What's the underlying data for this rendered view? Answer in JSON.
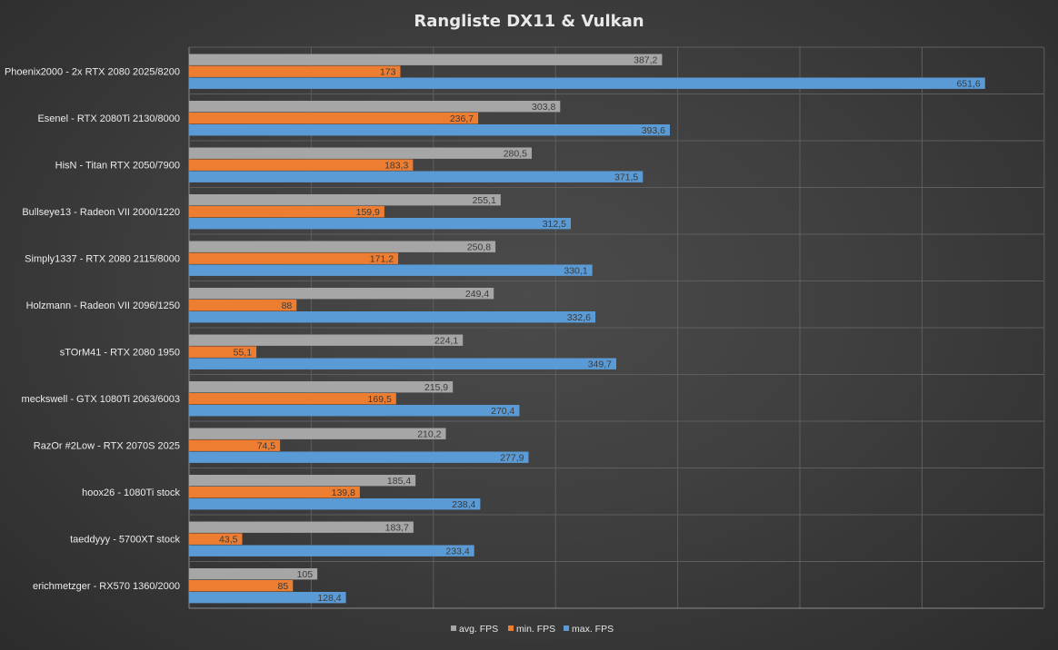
{
  "colors": {
    "avg": "#a6a6a6",
    "min": "#ed7d31",
    "max": "#5b9bd5",
    "grid": "#5e5e5e",
    "axis": "#8a8a8a"
  },
  "chart_data": {
    "type": "bar",
    "orientation": "horizontal",
    "title": "Rangliste  DX11  & Vulkan",
    "xlabel": "",
    "ylabel": "",
    "xlim": [
      0,
      700
    ],
    "grid": true,
    "legend_position": "bottom",
    "categories": [
      "Phoenix2000 - 2x RTX 2080 2025/8200",
      "Esenel - RTX 2080Ti 2130/8000",
      "HisN - Titan RTX 2050/7900",
      "Bullseye13 - Radeon VII 2000/1220",
      "Simply1337 - RTX 2080 2115/8000",
      "Holzmann - Radeon VII 2096/1250",
      "sTOrM41 - RTX 2080 1950",
      "meckswell - GTX 1080Ti 2063/6003",
      "RazOr #2Low - RTX 2070S 2025",
      "hoox26 - 1080Ti stock",
      "taeddyyy - 5700XT stock",
      "erichmetzger - RX570 1360/2000"
    ],
    "series": [
      {
        "name": "avg. FPS",
        "key": "avg",
        "values": [
          387.2,
          303.8,
          280.5,
          255.1,
          250.8,
          249.4,
          224.1,
          215.9,
          210.2,
          185.4,
          183.7,
          105
        ],
        "labels": [
          "387,2",
          "303,8",
          "280,5",
          "255,1",
          "250,8",
          "249,4",
          "224,1",
          "215,9",
          "210,2",
          "185,4",
          "183,7",
          "105"
        ]
      },
      {
        "name": "min. FPS",
        "key": "min",
        "values": [
          173,
          236.7,
          183.3,
          159.9,
          171.2,
          88,
          55.1,
          169.5,
          74.5,
          139.8,
          43.5,
          85
        ],
        "labels": [
          "173",
          "236,7",
          "183,3",
          "159,9",
          "171,2",
          "88",
          "55,1",
          "169,5",
          "74,5",
          "139,8",
          "43,5",
          "85"
        ]
      },
      {
        "name": "max. FPS",
        "key": "max",
        "values": [
          651.6,
          393.6,
          371.5,
          312.5,
          330.1,
          332.6,
          349.7,
          270.4,
          277.9,
          238.4,
          233.4,
          128.4
        ],
        "labels": [
          "651,6",
          "393,6",
          "371,5",
          "312,5",
          "330,1",
          "332,6",
          "349,7",
          "270,4",
          "277,9",
          "238,4",
          "233,4",
          "128,4"
        ]
      }
    ]
  }
}
